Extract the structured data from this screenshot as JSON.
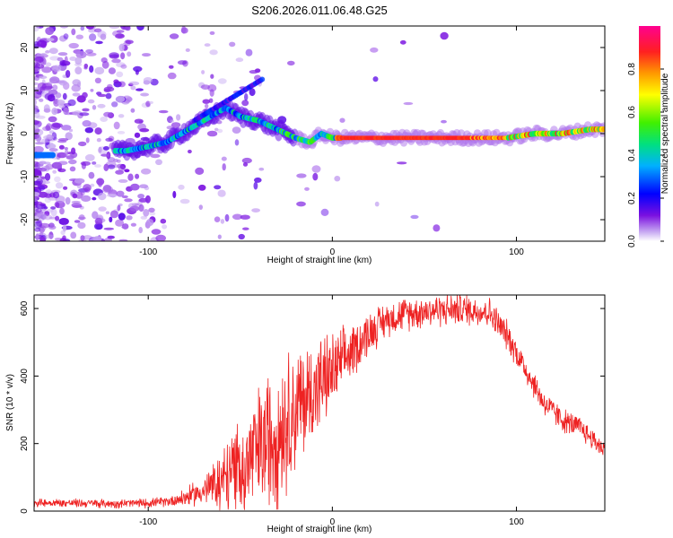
{
  "title": "S206.2026.011.06.48.G25",
  "chart_data": [
    {
      "type": "heatmap",
      "xlabel": "Height of straight line (km)",
      "ylabel": "Frequency (Hz)",
      "xlim": [
        -162,
        148
      ],
      "ylim": [
        -25,
        25
      ],
      "xticks": [
        -100,
        0,
        100
      ],
      "yticks": [
        -20,
        -10,
        0,
        10,
        20
      ],
      "ridge": [
        {
          "x": -112,
          "y": -4
        },
        {
          "x": -100,
          "y": -3
        },
        {
          "x": -90,
          "y": -2
        },
        {
          "x": -82,
          "y": 0
        },
        {
          "x": -70,
          "y": 3
        },
        {
          "x": -58,
          "y": 6
        },
        {
          "x": -50,
          "y": 4
        },
        {
          "x": -40,
          "y": 3
        },
        {
          "x": -30,
          "y": 1
        },
        {
          "x": -20,
          "y": -1
        },
        {
          "x": -12,
          "y": -2
        },
        {
          "x": -6,
          "y": 0
        },
        {
          "x": 0,
          "y": -1
        },
        {
          "x": 20,
          "y": -1
        },
        {
          "x": 50,
          "y": -1
        },
        {
          "x": 80,
          "y": -1
        },
        {
          "x": 95,
          "y": -1
        },
        {
          "x": 110,
          "y": 0
        },
        {
          "x": 125,
          "y": 0
        },
        {
          "x": 140,
          "y": 1
        },
        {
          "x": 148,
          "y": 1
        }
      ],
      "colorbar": {
        "label": "Normalized spectral amplitude",
        "range": [
          0,
          1
        ],
        "ticks": [
          "0.0",
          "0.2",
          "0.4",
          "0.6",
          "0.8"
        ],
        "colors": [
          "#ffffff",
          "#b08af0",
          "#6a00d8",
          "#0000ff",
          "#00c0ff",
          "#00e070",
          "#60ff00",
          "#ffff00",
          "#ff9900",
          "#ff2020",
          "#ff0090"
        ]
      }
    },
    {
      "type": "line",
      "xlabel": "Height of straight line (km)",
      "ylabel": "SNR (10 * v/v)",
      "xlim": [
        -162,
        148
      ],
      "ylim": [
        0,
        640
      ],
      "xticks": [
        -100,
        0,
        100
      ],
      "yticks": [
        0,
        200,
        400,
        600
      ],
      "color": "#ee2222",
      "envelope": [
        {
          "x": -162,
          "y": 25
        },
        {
          "x": -140,
          "y": 24
        },
        {
          "x": -120,
          "y": 22
        },
        {
          "x": -100,
          "y": 24
        },
        {
          "x": -90,
          "y": 28
        },
        {
          "x": -80,
          "y": 40
        },
        {
          "x": -70,
          "y": 60
        },
        {
          "x": -60,
          "y": 90
        },
        {
          "x": -50,
          "y": 130
        },
        {
          "x": -40,
          "y": 180
        },
        {
          "x": -30,
          "y": 240
        },
        {
          "x": -20,
          "y": 300
        },
        {
          "x": -10,
          "y": 360
        },
        {
          "x": 0,
          "y": 410
        },
        {
          "x": 10,
          "y": 470
        },
        {
          "x": 20,
          "y": 530
        },
        {
          "x": 30,
          "y": 570
        },
        {
          "x": 40,
          "y": 585
        },
        {
          "x": 55,
          "y": 595
        },
        {
          "x": 70,
          "y": 598
        },
        {
          "x": 85,
          "y": 590
        },
        {
          "x": 95,
          "y": 520
        },
        {
          "x": 105,
          "y": 420
        },
        {
          "x": 115,
          "y": 320
        },
        {
          "x": 125,
          "y": 270
        },
        {
          "x": 135,
          "y": 245
        },
        {
          "x": 148,
          "y": 180
        }
      ],
      "noise": [
        {
          "x": -162,
          "a": 12
        },
        {
          "x": -90,
          "a": 14
        },
        {
          "x": -70,
          "a": 40
        },
        {
          "x": -50,
          "a": 150
        },
        {
          "x": -30,
          "a": 220
        },
        {
          "x": -10,
          "a": 150
        },
        {
          "x": 10,
          "a": 80
        },
        {
          "x": 30,
          "a": 50
        },
        {
          "x": 90,
          "a": 45
        },
        {
          "x": 110,
          "a": 40
        },
        {
          "x": 148,
          "a": 30
        }
      ]
    }
  ]
}
